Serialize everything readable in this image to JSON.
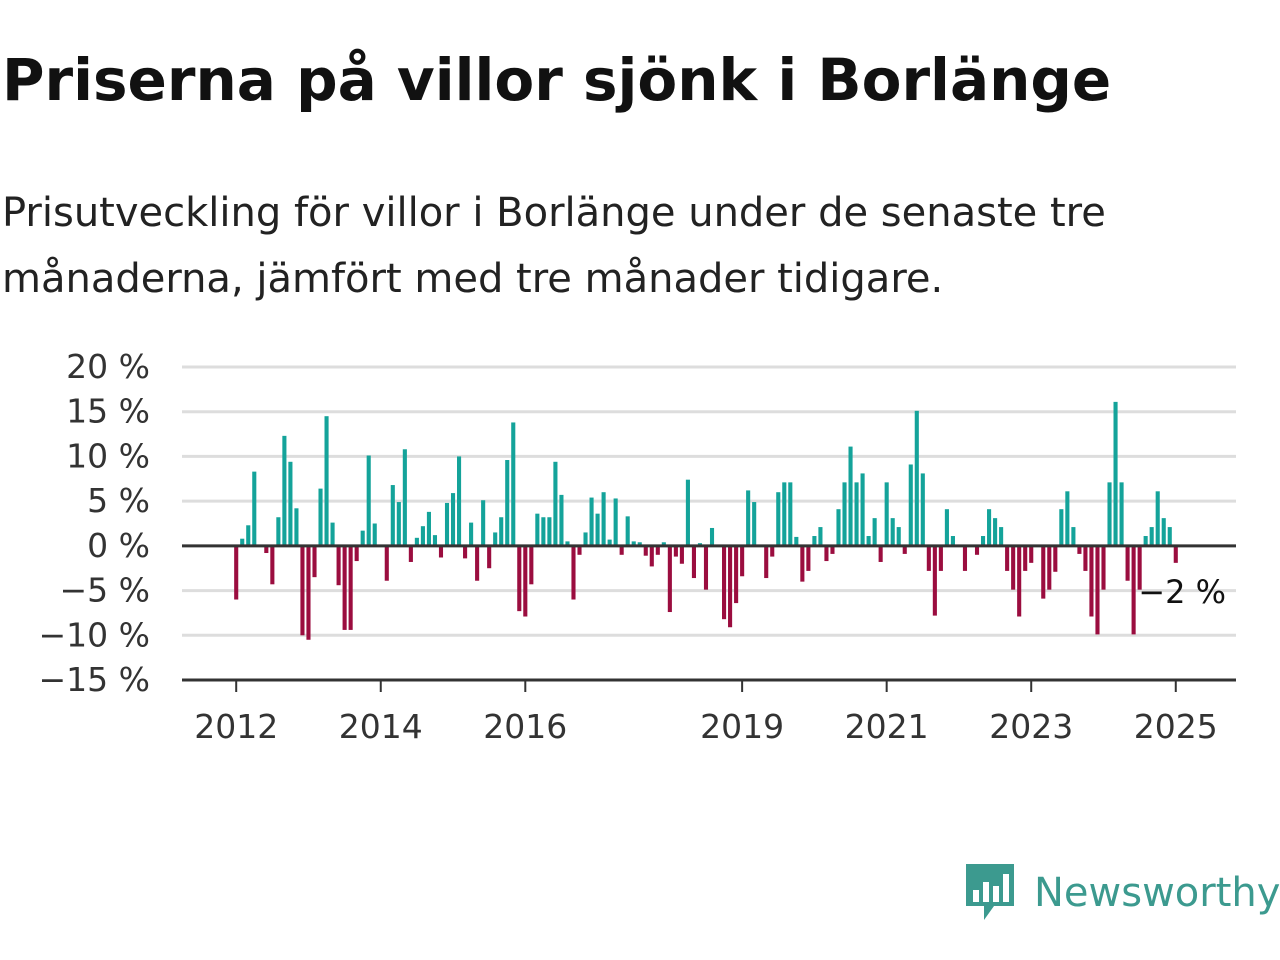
{
  "header": {
    "title": "Priserna på villor sjönk i Borlänge",
    "subtitle": "Prisutveckling för villor i Borlänge under de senaste tre månaderna, jämfört med tre månader tidigare."
  },
  "logo": {
    "text": "Newsworthy",
    "icon": "newsworthy-bar-chart-bubble-icon",
    "color": "#3c9a8f"
  },
  "chart_data": {
    "type": "bar",
    "x_start": "2012-01",
    "x_unit": "month",
    "xlim": [
      "2011-04",
      "2025-11"
    ],
    "ylim": [
      -15,
      20
    ],
    "yticks": [
      20,
      15,
      10,
      5,
      0,
      -5,
      -10,
      -15
    ],
    "ytick_labels": [
      "20 %",
      "15 %",
      "10 %",
      "5 %",
      "0 %",
      "−5 %",
      "−10 %",
      "−15 %"
    ],
    "xticks": [
      "2012-01",
      "2014-01",
      "2016-01",
      "2019-01",
      "2021-01",
      "2023-01",
      "2025-01"
    ],
    "xtick_labels": [
      "2012",
      "2014",
      "2016",
      "2019",
      "2021",
      "2023",
      "2025"
    ],
    "grid": true,
    "colors": {
      "positive": "#14a39a",
      "negative": "#9b0d3f",
      "grid": "#dddddd",
      "zero_line": "#333333",
      "axis": "#333333"
    },
    "annotation": {
      "text": "−2 %",
      "x": "2025-01"
    },
    "values": [
      -6,
      0.8,
      2.3,
      8.3,
      0,
      -0.8,
      -4.3,
      3.2,
      12.3,
      9.4,
      4.2,
      -10,
      -10.5,
      -3.5,
      6.4,
      14.5,
      2.6,
      -4.4,
      -9.4,
      -9.4,
      -1.7,
      1.7,
      10.1,
      2.5,
      0,
      -3.9,
      6.8,
      4.9,
      10.8,
      -1.8,
      0.9,
      2.2,
      3.8,
      1.2,
      -1.3,
      4.8,
      5.9,
      10,
      -1.4,
      2.6,
      -3.9,
      5.1,
      -2.5,
      1.5,
      3.2,
      9.6,
      13.8,
      -7.3,
      -7.9,
      -4.3,
      3.6,
      3.2,
      3.2,
      9.4,
      5.7,
      0.5,
      -6,
      -1,
      1.5,
      5.4,
      3.6,
      6,
      0.7,
      5.3,
      -1,
      3.3,
      0.5,
      0.4,
      -1.1,
      -2.3,
      -1,
      0.4,
      -7.4,
      -1.2,
      -2,
      7.4,
      -3.6,
      0.3,
      -4.9,
      2,
      0,
      -8.2,
      -9.1,
      -6.4,
      -3.4,
      6.2,
      4.9,
      0,
      -3.6,
      -1.2,
      6,
      7.1,
      7.1,
      1,
      -4,
      -2.8,
      1.1,
      2.1,
      -1.7,
      -0.9,
      4.1,
      7.1,
      11.1,
      7.1,
      8.1,
      1.1,
      3.1,
      -1.8,
      7.1,
      3.1,
      2.1,
      -0.9,
      9.1,
      15.1,
      8.1,
      -2.8,
      -7.8,
      -2.8,
      4.1,
      1.1,
      0,
      -2.8,
      0,
      -1,
      1.1,
      4.1,
      3.1,
      2.1,
      -2.8,
      -4.9,
      -7.9,
      -2.8,
      -1.9,
      0,
      -5.9,
      -4.9,
      -2.9,
      4.1,
      6.1,
      2.1,
      -0.9,
      -2.8,
      -7.9,
      -9.9,
      -4.9,
      7.1,
      16.1,
      7.1,
      -3.9,
      -9.9,
      -4.9,
      1.1,
      2.1,
      6.1,
      3.1,
      2.1,
      -1.9
    ]
  }
}
